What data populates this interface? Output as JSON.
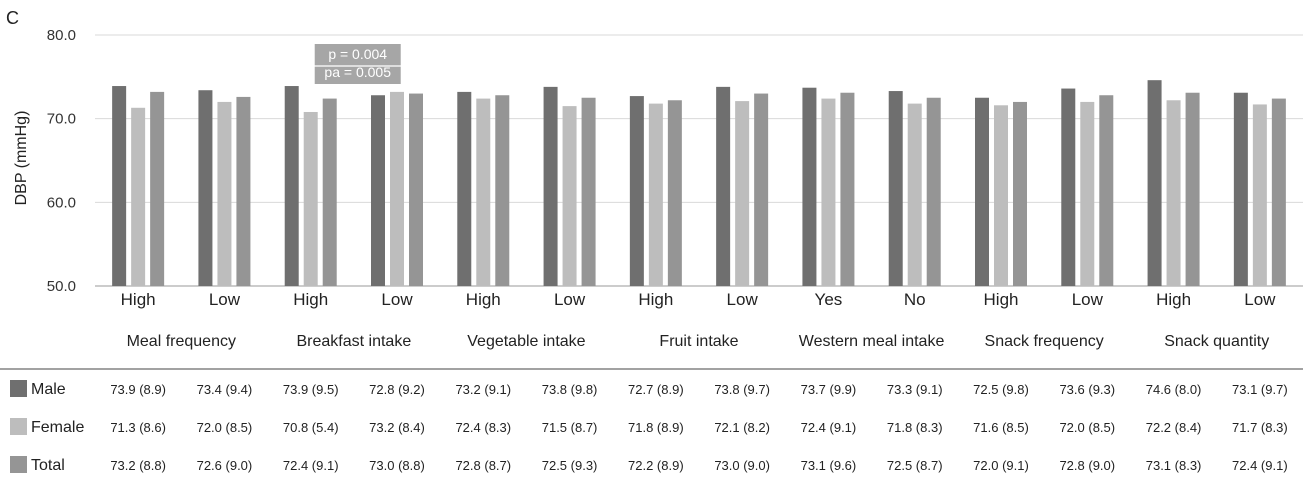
{
  "chart_data": {
    "type": "bar",
    "panel_label": "C",
    "ylabel": "DBP (mmHg)",
    "ylim": [
      50,
      80
    ],
    "yticks": [
      "50.0",
      "60.0",
      "70.0",
      "80.0"
    ],
    "grid": true,
    "groups": [
      {
        "name": "Meal frequency",
        "categories": [
          "High",
          "Low"
        ]
      },
      {
        "name": "Breakfast intake",
        "categories": [
          "High",
          "Low"
        ]
      },
      {
        "name": "Vegetable intake",
        "categories": [
          "High",
          "Low"
        ]
      },
      {
        "name": "Fruit intake",
        "categories": [
          "High",
          "Low"
        ]
      },
      {
        "name": "Western meal intake",
        "categories": [
          "Yes",
          "No"
        ]
      },
      {
        "name": "Snack frequency",
        "categories": [
          "High",
          "Low"
        ]
      },
      {
        "name": "Snack quantity",
        "categories": [
          "High",
          "Low"
        ]
      }
    ],
    "series": [
      {
        "name": "Male",
        "color": "#6f6f6f",
        "values": [
          73.9,
          73.4,
          73.9,
          72.8,
          73.2,
          73.8,
          72.7,
          73.8,
          73.7,
          73.3,
          72.5,
          73.6,
          74.6,
          73.1
        ],
        "labels": [
          "73.9 (8.9)",
          "73.4 (9.4)",
          "73.9 (9.5)",
          "72.8 (9.2)",
          "73.2 (9.1)",
          "73.8 (9.8)",
          "72.7 (8.9)",
          "73.8 (9.7)",
          "73.7 (9.9)",
          "73.3 (9.1)",
          "72.5 (9.8)",
          "73.6 (9.3)",
          "74.6 (8.0)",
          "73.1 (9.7)"
        ]
      },
      {
        "name": "Female",
        "color": "#bdbdbd",
        "values": [
          71.3,
          72.0,
          70.8,
          73.2,
          72.4,
          71.5,
          71.8,
          72.1,
          72.4,
          71.8,
          71.6,
          72.0,
          72.2,
          71.7
        ],
        "labels": [
          "71.3 (8.6)",
          "72.0 (8.5)",
          "70.8 (5.4)",
          "73.2 (8.4)",
          "72.4 (8.3)",
          "71.5 (8.7)",
          "71.8 (8.9)",
          "72.1 (8.2)",
          "72.4 (9.1)",
          "71.8 (8.3)",
          "71.6 (8.5)",
          "72.0 (8.5)",
          "72.2 (8.4)",
          "71.7 (8.3)"
        ]
      },
      {
        "name": "Total",
        "color": "#959595",
        "values": [
          73.2,
          72.6,
          72.4,
          73.0,
          72.8,
          72.5,
          72.2,
          73.0,
          73.1,
          72.5,
          72.0,
          72.8,
          73.1,
          72.4
        ],
        "labels": [
          "73.2 (8.8)",
          "72.6 (9.0)",
          "72.4 (9.1)",
          "73.0 (8.8)",
          "72.8 (8.7)",
          "72.5 (9.3)",
          "72.2 (8.9)",
          "73.0 (9.0)",
          "73.1 (9.6)",
          "72.5 (8.7)",
          "72.0 (9.1)",
          "72.8 (9.0)",
          "73.1 (8.3)",
          "72.4 (9.1)"
        ]
      }
    ],
    "annotation": {
      "group_index": 1,
      "p_text": "p = 0.004",
      "pa_text": "pa = 0.005"
    }
  }
}
